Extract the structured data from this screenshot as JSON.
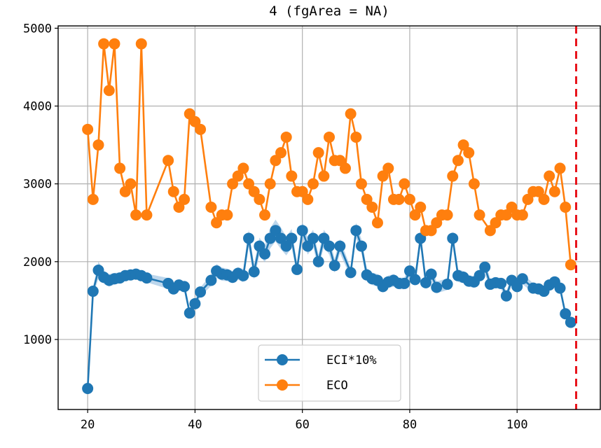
{
  "chart_data": {
    "type": "line",
    "title": "4 (fgArea = NA)",
    "xlabel": "",
    "ylabel": "",
    "xlim": [
      14.5,
      115.5
    ],
    "ylim": [
      100,
      5030
    ],
    "xticks": [
      20,
      40,
      60,
      80,
      100
    ],
    "yticks": [
      1000,
      2000,
      3000,
      4000,
      5000
    ],
    "grid": true,
    "legend_position": "lower center",
    "vline": {
      "x": 111,
      "color": "#e8141c",
      "style": "dashed"
    },
    "series": [
      {
        "name": "ECI*10%",
        "color": "#1f77b4",
        "band_color": "#a6c8e6",
        "x": [
          20,
          21,
          22,
          23,
          24,
          25,
          26,
          27,
          28,
          29,
          30,
          31,
          35,
          36,
          37,
          38,
          39,
          40,
          41,
          43,
          44,
          45,
          46,
          47,
          48,
          49,
          50,
          51,
          52,
          53,
          54,
          55,
          56,
          57,
          58,
          59,
          60,
          61,
          62,
          63,
          64,
          65,
          66,
          67,
          69,
          70,
          71,
          72,
          73,
          74,
          75,
          76,
          77,
          78,
          79,
          80,
          81,
          82,
          83,
          84,
          85,
          87,
          88,
          89,
          90,
          91,
          92,
          93,
          94,
          95,
          96,
          97,
          98,
          99,
          100,
          101,
          103,
          104,
          105,
          106,
          107,
          108,
          109,
          110
        ],
        "values": [
          370,
          1620,
          1890,
          1800,
          1760,
          1780,
          1790,
          1820,
          1830,
          1840,
          1820,
          1790,
          1720,
          1650,
          1700,
          1680,
          1340,
          1460,
          1610,
          1760,
          1880,
          1840,
          1830,
          1800,
          1850,
          1820,
          2300,
          1870,
          2200,
          2100,
          2300,
          2400,
          2300,
          2200,
          2300,
          1900,
          2400,
          2200,
          2300,
          2000,
          2300,
          2200,
          1950,
          2200,
          1860,
          2400,
          2200,
          1830,
          1780,
          1760,
          1680,
          1740,
          1760,
          1720,
          1720,
          1880,
          1770,
          2300,
          1730,
          1840,
          1670,
          1710,
          2300,
          1820,
          1800,
          1750,
          1740,
          1820,
          1930,
          1710,
          1730,
          1720,
          1560,
          1760,
          1680,
          1780,
          1660,
          1650,
          1620,
          1700,
          1740,
          1660,
          1330,
          1220
        ],
        "band": [
          50,
          55,
          110,
          85,
          80,
          75,
          70,
          65,
          60,
          60,
          60,
          55,
          70,
          70,
          70,
          65,
          50,
          55,
          60,
          70,
          90,
          85,
          80,
          80,
          80,
          85,
          110,
          100,
          110,
          110,
          130,
          140,
          140,
          120,
          120,
          80,
          110,
          110,
          110,
          90,
          110,
          110,
          90,
          90,
          60,
          100,
          90,
          85,
          80,
          80,
          75,
          80,
          80,
          75,
          75,
          80,
          75,
          90,
          80,
          80,
          75,
          75,
          90,
          80,
          80,
          75,
          75,
          80,
          80,
          70,
          70,
          70,
          55,
          70,
          70,
          70,
          60,
          60,
          60,
          60,
          60,
          55,
          45,
          45
        ]
      },
      {
        "name": "ECO",
        "color": "#ff7f0e",
        "x": [
          20,
          21,
          22,
          23,
          24,
          25,
          26,
          27,
          28,
          29,
          30,
          31,
          35,
          36,
          37,
          38,
          39,
          40,
          41,
          43,
          44,
          45,
          46,
          47,
          48,
          49,
          50,
          51,
          52,
          53,
          54,
          55,
          56,
          57,
          58,
          59,
          60,
          61,
          62,
          63,
          64,
          65,
          66,
          67,
          68,
          69,
          70,
          71,
          72,
          73,
          74,
          75,
          76,
          77,
          78,
          79,
          80,
          81,
          82,
          83,
          84,
          85,
          86,
          87,
          88,
          89,
          90,
          91,
          92,
          93,
          95,
          96,
          97,
          98,
          99,
          100,
          101,
          102,
          103,
          104,
          105,
          106,
          107,
          108,
          109,
          110
        ],
        "values": [
          3700,
          2800,
          3500,
          4800,
          4200,
          4800,
          3200,
          2900,
          3000,
          2600,
          4800,
          2600,
          3300,
          2900,
          2700,
          2800,
          3900,
          3800,
          3700,
          2700,
          2500,
          2600,
          2600,
          3000,
          3100,
          3200,
          3000,
          2900,
          2800,
          2600,
          3000,
          3300,
          3400,
          3600,
          3100,
          2900,
          2900,
          2800,
          3000,
          3400,
          3100,
          3600,
          3300,
          3300,
          3200,
          3900,
          3600,
          3000,
          2800,
          2700,
          2500,
          3100,
          3200,
          2800,
          2800,
          3000,
          2800,
          2600,
          2700,
          2400,
          2400,
          2500,
          2600,
          2600,
          3100,
          3300,
          3500,
          3400,
          3000,
          2600,
          2400,
          2500,
          2600,
          2600,
          2700,
          2600,
          2600,
          2800,
          2900,
          2900,
          2800,
          3100,
          2900,
          3200,
          2700,
          1960
        ]
      }
    ]
  }
}
